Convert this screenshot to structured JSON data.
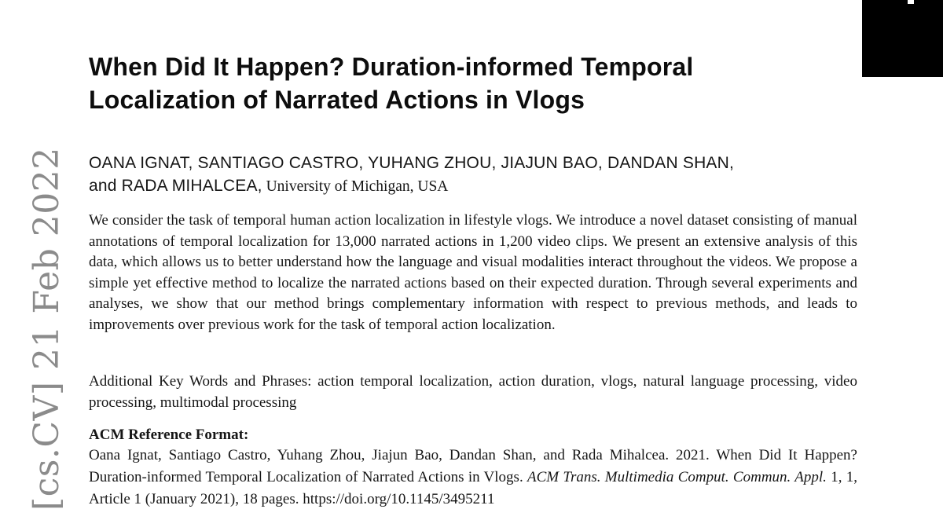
{
  "watermark": {
    "text": "[cs.CV] 21 Feb 2022",
    "color": "#8b8b8b"
  },
  "corner_box": {
    "color": "#000000"
  },
  "paper": {
    "title": {
      "full": "When Did It Happen? Duration-informed Temporal Localization of Narrated Actions in Vlogs",
      "line1": "When Did It Happen? Duration-informed Temporal",
      "line2": "Localization of Narrated Actions in Vlogs"
    },
    "authors": {
      "line1": "OANA IGNAT, SANTIAGO CASTRO, YUHANG ZHOU, JIAJUN BAO, DANDAN SHAN,",
      "line2_names": "and RADA MIHALCEA,",
      "affiliation": " University of Michigan, USA"
    },
    "abstract": "We consider the task of temporal human action localization in lifestyle vlogs. We introduce a novel dataset consisting of manual annotations of temporal localization for 13,000 narrated actions in 1,200 video clips. We present an extensive analysis of this data, which allows us to better understand how the language and visual modalities interact throughout the videos. We propose a simple yet effective method to localize the narrated actions based on their expected duration. Through several experiments and analyses, we show that our method brings complementary information with respect to previous methods, and leads to improvements over previous work for the task of temporal action localization.",
    "keywords": "Additional Key Words and Phrases: action temporal localization, action duration, vlogs, natural language processing, video processing, multimodal processing",
    "reference": {
      "heading": "ACM Reference Format:",
      "citation_pre": "Oana Ignat, Santiago Castro, Yuhang Zhou, Jiajun Bao, Dandan Shan, and Rada Mihalcea. 2021. When Did It Happen? Duration-informed Temporal Localization of Narrated Actions in Vlogs. ",
      "journal_italic": "ACM Trans. Multimedia Comput. Commun. Appl.",
      "citation_mid": " 1, 1, Article 1 (January 2021), 18 pages. ",
      "doi": "https://doi.org/10.1145/3495211"
    }
  }
}
